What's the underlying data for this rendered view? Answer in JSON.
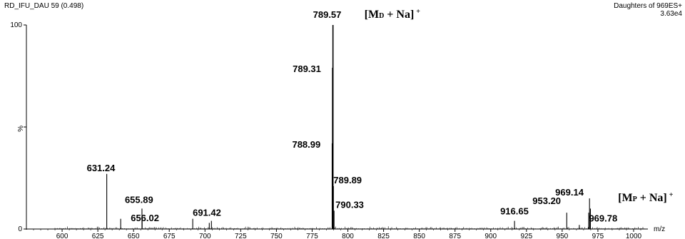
{
  "header": {
    "run_id": "RD_IFU_DAU 59 (0.498)",
    "scan_type": "Daughters of 969ES+",
    "intensity": "3.63e4"
  },
  "colors": {
    "trace": "#000000",
    "axis": "#000000",
    "background": "#ffffff"
  },
  "chart_data": {
    "type": "bar",
    "title": "",
    "xlabel": "m/z",
    "ylabel": "%",
    "xlim": [
      575,
      1010
    ],
    "ylim": [
      0,
      100
    ],
    "xticks": [
      600,
      625,
      650,
      675,
      700,
      725,
      750,
      775,
      800,
      825,
      850,
      875,
      900,
      925,
      950,
      975,
      1000
    ],
    "yticks": [
      {
        "value": 0,
        "label": "0"
      },
      {
        "value": 50,
        "label": "%"
      },
      {
        "value": 100,
        "label": "100"
      }
    ],
    "grid": false,
    "peaks": [
      {
        "mz": 631.24,
        "intensity": 27,
        "label": "631.24"
      },
      {
        "mz": 641.0,
        "intensity": 5
      },
      {
        "mz": 655.89,
        "intensity": 10,
        "label": "655.89"
      },
      {
        "mz": 656.02,
        "intensity": 6,
        "label": "656.02"
      },
      {
        "mz": 691.42,
        "intensity": 5,
        "label": "691.42"
      },
      {
        "mz": 703.0,
        "intensity": 3
      },
      {
        "mz": 704.5,
        "intensity": 4
      },
      {
        "mz": 788.99,
        "intensity": 42,
        "label": "788.99"
      },
      {
        "mz": 789.31,
        "intensity": 79,
        "label": "789.31"
      },
      {
        "mz": 789.57,
        "intensity": 100,
        "label": "789.57"
      },
      {
        "mz": 789.89,
        "intensity": 21,
        "label": "789.89"
      },
      {
        "mz": 790.33,
        "intensity": 9,
        "label": "790.33"
      },
      {
        "mz": 916.65,
        "intensity": 4,
        "label": "916.65"
      },
      {
        "mz": 953.2,
        "intensity": 8,
        "label": "953.20"
      },
      {
        "mz": 962.0,
        "intensity": 2
      },
      {
        "mz": 968.6,
        "intensity": 8
      },
      {
        "mz": 969.14,
        "intensity": 15,
        "label": "969.14"
      },
      {
        "mz": 969.78,
        "intensity": 10,
        "label": "969.78"
      }
    ],
    "annotations": [
      {
        "mz": 789.57,
        "main": "[M",
        "sub": "D",
        "after": " + Na]",
        "sup": "+"
      },
      {
        "mz": 969.14,
        "main": "[M",
        "sub": "P",
        "after": " + Na]",
        "sup": "+"
      }
    ]
  }
}
